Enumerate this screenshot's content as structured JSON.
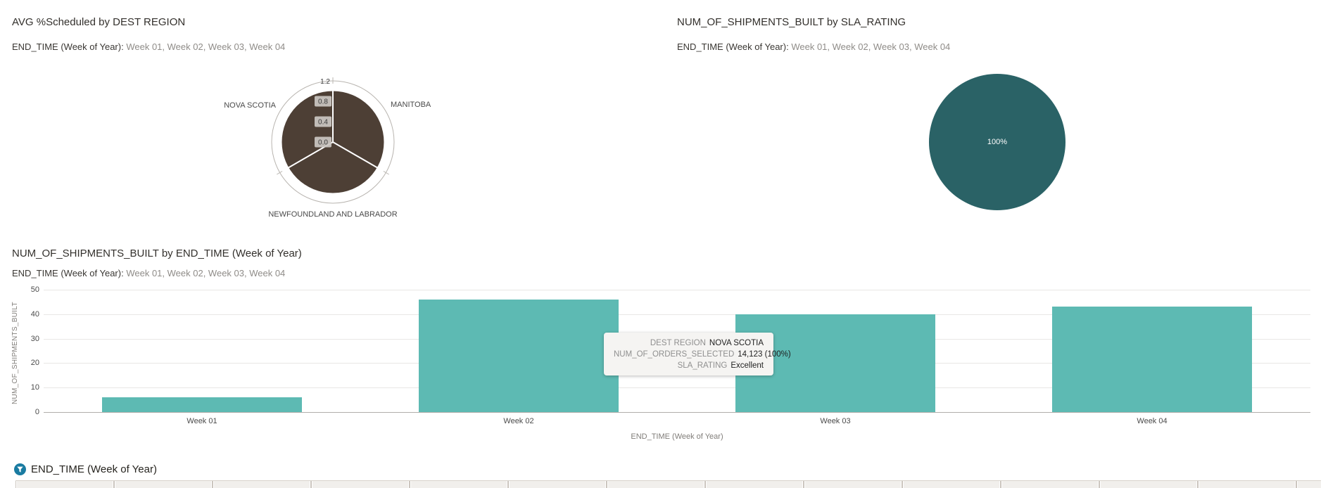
{
  "colors": {
    "bar_teal": "#5dbab3",
    "pie_teal": "#2a6266",
    "radial_brown": "#4d3f35",
    "ring_gray": "#b8b4af",
    "badge_gray": "#cbc7c2",
    "filter_icon_teal": "#1a7ba1"
  },
  "chart_data": [
    {
      "type": "pie",
      "variant": "radial-rose",
      "title": "AVG %Scheduled by DEST REGION",
      "subtitle_label": "END_TIME (Week of Year):",
      "subtitle_values": "Week 01, Week 02, Week 03, Week 04",
      "categories": [
        "MANITOBA",
        "NEWFOUNDLAND AND LABRADOR",
        "NOVA SCOTIA"
      ],
      "values": [
        1.0,
        1.0,
        1.0
      ],
      "value_axis_max": 1.2,
      "tick_labels": [
        "0.0",
        "0.4",
        "0.8",
        "1.2"
      ],
      "legend": "none"
    },
    {
      "type": "pie",
      "title": "NUM_OF_SHIPMENTS_BUILT by SLA_RATING",
      "subtitle_label": "END_TIME (Week of Year):",
      "subtitle_values": "Week 01, Week 02, Week 03, Week 04",
      "categories": [
        "Excellent"
      ],
      "values": [
        100
      ],
      "slice_label": "100%",
      "legend": "none"
    },
    {
      "type": "bar",
      "title": "NUM_OF_SHIPMENTS_BUILT by END_TIME (Week of Year)",
      "subtitle_label": "END_TIME (Week of Year):",
      "subtitle_values": "Week 01, Week 02, Week 03, Week 04",
      "categories": [
        "Week 01",
        "Week 02",
        "Week 03",
        "Week 04"
      ],
      "values": [
        6,
        46,
        40,
        43
      ],
      "xlabel": "END_TIME (Week of Year)",
      "ylabel": "NUM_OF_SHIPMENTS_BUILT",
      "ylim": [
        0,
        50
      ],
      "yticks": [
        0,
        10,
        20,
        30,
        40,
        50
      ],
      "grid": "horizontal"
    }
  ],
  "tooltip": {
    "rows": [
      {
        "label": "DEST REGION",
        "value": "NOVA SCOTIA"
      },
      {
        "label": "NUM_OF_ORDERS_SELECTED",
        "value": "14,123 (100%)"
      },
      {
        "label": "SLA_RATING",
        "value": "Excellent"
      }
    ]
  },
  "filter_bar": {
    "label": "END_TIME (Week of Year)"
  }
}
